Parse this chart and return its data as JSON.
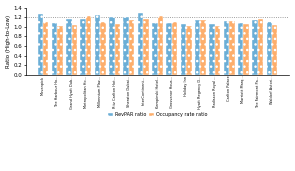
{
  "categories": [
    "Movenpick",
    "The Harbour Ho...",
    "Grand Hyatt Dub...",
    "Metropolitan Ho...",
    "Millennium Plaz...",
    "Ritz Carlton Hot...",
    "Sheraton Dubai...",
    "InterContinent...",
    "Kempinski Hotel...",
    "Grosvenor Hous...",
    "Holiday Inn",
    "Hyatt Regency D...",
    "Radisson Royal ...",
    "Carlton Palace",
    "Marriott Marq...",
    "The Fairmont Pa...",
    "Waldorf Astori..."
  ],
  "revpar": [
    1.27,
    1.07,
    1.17,
    1.17,
    1.25,
    1.2,
    1.2,
    1.28,
    1.07,
    1.07,
    1.05,
    1.15,
    1.05,
    1.13,
    1.07,
    1.14,
    1.1
  ],
  "occupancy": [
    1.1,
    1.02,
    1.03,
    1.23,
    1.09,
    1.05,
    1.14,
    1.16,
    1.23,
    1.09,
    1.01,
    1.14,
    1.01,
    1.13,
    1.05,
    1.16,
    1.04
  ],
  "revpar_color": "#6baed6",
  "occupancy_color": "#fdae6b",
  "ylim": [
    0,
    1.4
  ],
  "yticks": [
    0,
    0.2,
    0.4,
    0.6,
    0.8,
    1.0,
    1.2,
    1.4
  ],
  "ylabel": "Ratio (High-to-Low)",
  "legend_revpar": "RevPAR ratio",
  "legend_occupancy": "Occupancy rate ratio",
  "dotted_line_y": 1.2
}
